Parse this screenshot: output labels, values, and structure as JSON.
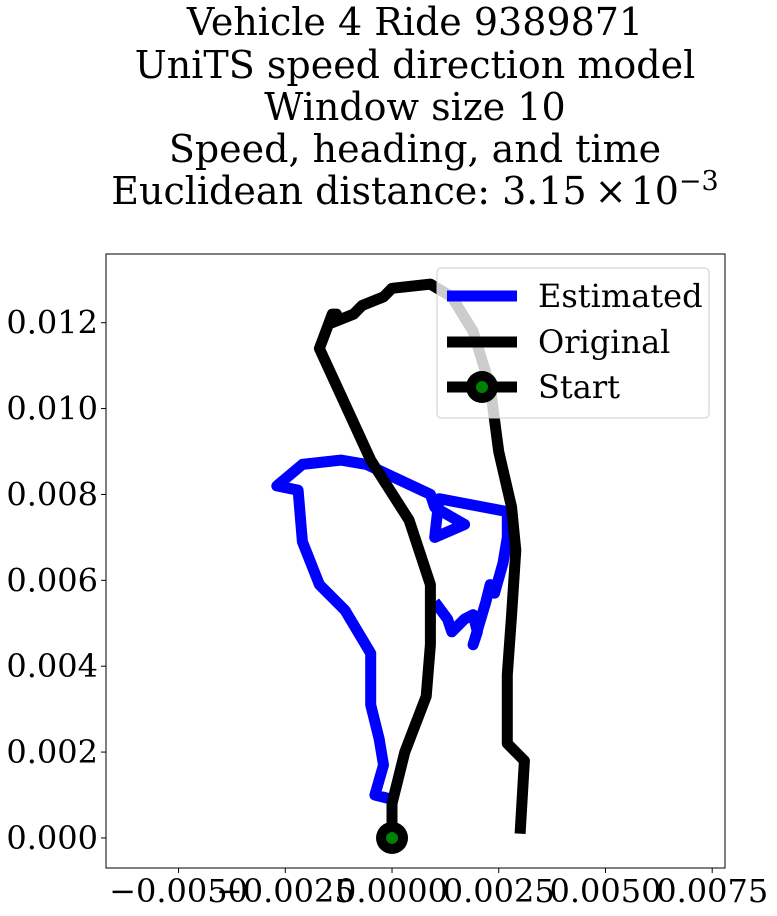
{
  "chart_data": {
    "type": "line",
    "title_lines": [
      "Vehicle 4 Ride 9389871",
      "UniTS speed direction model",
      "Window size 10",
      "Speed, heading, and time"
    ],
    "title_last_prefix": "Euclidean distance: 3.15",
    "title_last_times": "×",
    "title_last_base": "10",
    "title_last_exponent": "−3",
    "xlabel": "",
    "ylabel": "",
    "xlim": [
      -0.0067,
      0.0078
    ],
    "ylim": [
      -0.0007,
      0.0136
    ],
    "x_ticks": [
      -0.005,
      -0.0025,
      0.0,
      0.0025,
      0.005,
      0.0075
    ],
    "x_tick_labels": [
      "−0.0050",
      "−0.0025",
      "0.0000",
      "0.0025",
      "0.0050",
      "0.0075"
    ],
    "y_ticks": [
      0.0,
      0.002,
      0.004,
      0.006,
      0.008,
      0.01,
      0.012
    ],
    "y_tick_labels": [
      "0.000",
      "0.002",
      "0.004",
      "0.006",
      "0.008",
      "0.010",
      "0.012"
    ],
    "grid": false,
    "legend_position": "top-right",
    "series": [
      {
        "name": "Estimated",
        "color": "#0000ff",
        "x": [
          0.0,
          0.0,
          -0.0004,
          -0.0002,
          -0.0003,
          -0.0005,
          -0.0005,
          -0.0011,
          -0.0017,
          -0.0021,
          -0.0022,
          -0.0027,
          -0.0021,
          -0.0012,
          -0.0006,
          0.0009,
          0.001,
          0.0017,
          0.001,
          0.0011,
          0.0027,
          0.0027,
          0.0026,
          0.0024,
          0.0023,
          0.0022,
          0.0019,
          0.002,
          0.0019,
          0.0017,
          0.0014,
          0.0013,
          0.001
        ],
        "y": [
          0.0008,
          0.0009,
          0.001,
          0.0017,
          0.0023,
          0.0031,
          0.0043,
          0.0053,
          0.0059,
          0.0069,
          0.0081,
          0.0082,
          0.0087,
          0.0088,
          0.0087,
          0.008,
          0.0077,
          0.0073,
          0.007,
          0.0079,
          0.0076,
          0.007,
          0.0064,
          0.0057,
          0.0059,
          0.0055,
          0.0045,
          0.0048,
          0.0052,
          0.0051,
          0.0048,
          0.0051,
          0.0055
        ]
      },
      {
        "name": "Original",
        "color": "#000000",
        "x": [
          0.0,
          0.0,
          0.0003,
          0.0008,
          0.0009,
          0.0009,
          0.0004,
          -0.0005,
          -0.0011,
          -0.0017,
          -0.0014,
          -0.0013,
          -0.0014,
          -0.0009,
          -0.0007,
          -0.0002,
          0.0,
          0.0009,
          0.0014,
          0.0019,
          0.0023,
          0.0025,
          0.0028,
          0.0029,
          0.0028,
          0.0027,
          0.0027,
          0.0027,
          0.0031,
          0.003
        ],
        "y": [
          0.0,
          0.0008,
          0.002,
          0.0033,
          0.0045,
          0.0059,
          0.0074,
          0.0088,
          0.0101,
          0.0114,
          0.0122,
          0.0122,
          0.012,
          0.0122,
          0.0124,
          0.0126,
          0.0128,
          0.0129,
          0.0126,
          0.0118,
          0.0105,
          0.009,
          0.0077,
          0.0067,
          0.0052,
          0.0038,
          0.003,
          0.0022,
          0.0018,
          0.0001
        ]
      }
    ],
    "start_point": {
      "name": "Start",
      "x": 0.0,
      "y": 0.0,
      "color_outer": "#000000",
      "color_inner": "#008000"
    },
    "legend": [
      {
        "label": "Estimated",
        "kind": "line",
        "color": "#0000ff"
      },
      {
        "label": "Original",
        "kind": "line",
        "color": "#000000"
      },
      {
        "label": "Start",
        "kind": "marker",
        "color": "#000000",
        "inner_color": "#008000"
      }
    ]
  }
}
